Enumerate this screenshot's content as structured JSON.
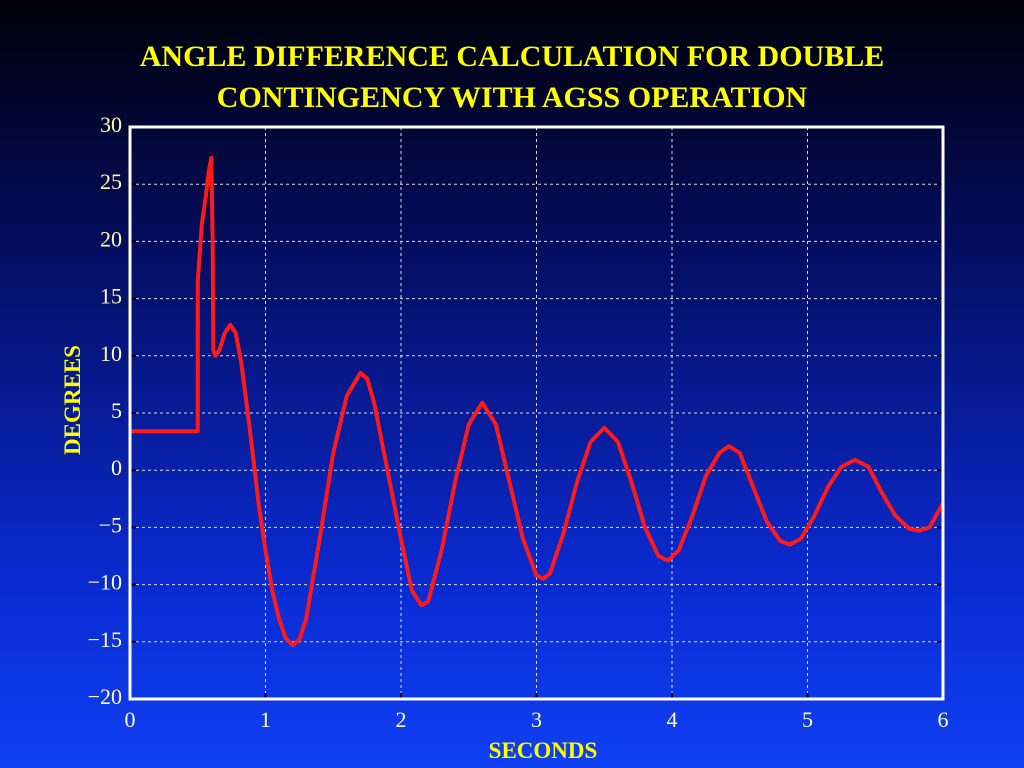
{
  "chart_data": {
    "type": "line",
    "title": [
      "ANGLE DIFFERENCE CALCULATION FOR DOUBLE",
      "CONTINGENCY WITH AGSS OPERATION"
    ],
    "x_label": "SECONDS",
    "y_label": "DEGREES",
    "xlim": [
      0,
      6
    ],
    "ylim": [
      -20,
      30
    ],
    "xticks": [
      0,
      1,
      2,
      3,
      4,
      5,
      6
    ],
    "yticks": [
      30,
      25,
      20,
      15,
      10,
      5,
      0,
      {
        "value": -5,
        "label": "−5"
      },
      {
        "value": -10,
        "label": "−10"
      },
      {
        "value": -15,
        "label": "−15"
      },
      {
        "value": -20,
        "label": "−20"
      }
    ],
    "grid": true,
    "color": "#ff1a1a",
    "x": [
      0,
      0.5,
      0.5,
      0.53,
      0.56,
      0.58,
      0.6,
      0.61,
      0.615,
      0.63,
      0.66,
      0.7,
      0.74,
      0.78,
      0.82,
      0.88,
      0.95,
      1.0,
      1.05,
      1.1,
      1.15,
      1.2,
      1.25,
      1.3,
      1.4,
      1.5,
      1.6,
      1.7,
      1.75,
      1.8,
      1.9,
      2.0,
      2.08,
      2.15,
      2.2,
      2.3,
      2.4,
      2.5,
      2.6,
      2.7,
      2.8,
      2.9,
      3.0,
      3.05,
      3.1,
      3.2,
      3.3,
      3.4,
      3.5,
      3.6,
      3.7,
      3.8,
      3.9,
      3.97,
      4.05,
      4.15,
      4.25,
      4.35,
      4.42,
      4.5,
      4.6,
      4.7,
      4.8,
      4.87,
      4.95,
      5.05,
      5.15,
      5.25,
      5.35,
      5.45,
      5.55,
      5.65,
      5.75,
      5.82,
      5.9,
      6.0
    ],
    "values": [
      3.4,
      3.4,
      16.5,
      21.5,
      24,
      26,
      27.3,
      20,
      10.5,
      10,
      10.5,
      12,
      12.7,
      12,
      9.5,
      4,
      -3,
      -7,
      -10.5,
      -13,
      -14.7,
      -15.3,
      -14.8,
      -13,
      -6,
      1.5,
      6.5,
      8.5,
      8,
      6,
      0,
      -6,
      -10.5,
      -11.8,
      -11.5,
      -7,
      -1,
      4,
      5.9,
      4,
      -1,
      -6,
      -9.2,
      -9.5,
      -9,
      -5.5,
      -1,
      2.5,
      3.7,
      2.5,
      -1,
      -5,
      -7.5,
      -7.9,
      -7,
      -4,
      -0.5,
      1.5,
      2.1,
      1.5,
      -1.5,
      -4.5,
      -6.2,
      -6.5,
      -6,
      -4,
      -1.5,
      0.3,
      0.9,
      0.3,
      -2,
      -4,
      -5.1,
      -5.3,
      -5,
      -2.9
    ]
  }
}
